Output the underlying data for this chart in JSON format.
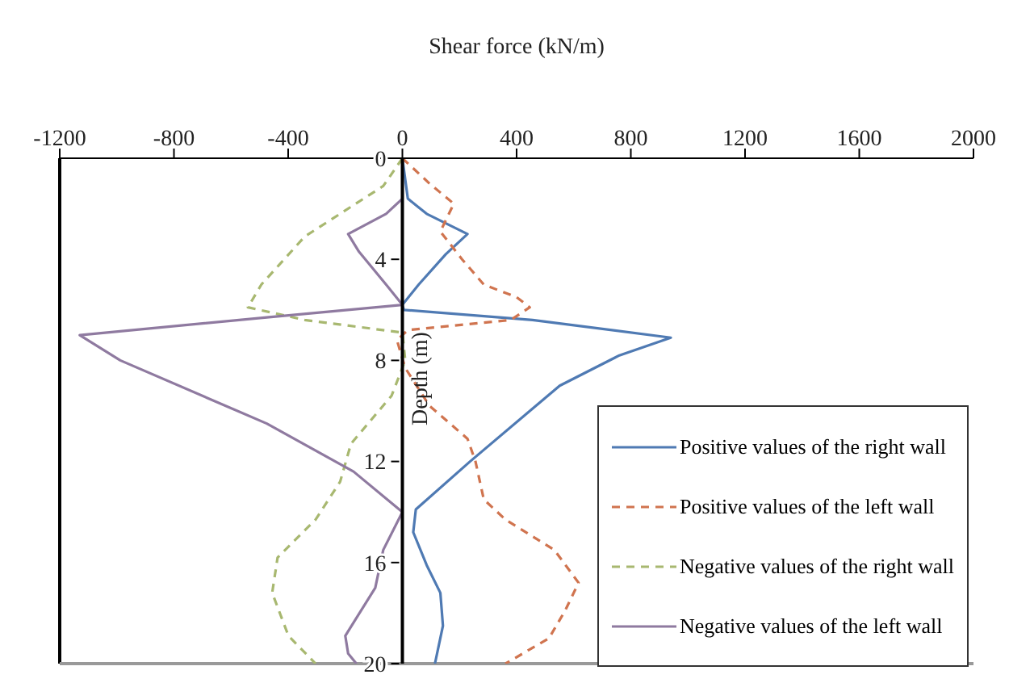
{
  "chart_data": {
    "type": "line",
    "xlabel": "Shear force (kN/m)",
    "ylabel": "Depth (m)",
    "xlim": [
      -1200,
      2000
    ],
    "xticks": [
      -1200,
      -800,
      -400,
      0,
      400,
      800,
      1200,
      1600,
      2000
    ],
    "ylim": [
      20,
      0
    ],
    "yticks": [
      0,
      4,
      8,
      12,
      16,
      20
    ],
    "grid": false,
    "legend": "bottom right",
    "marker": "none",
    "series": [
      {
        "name": "Positive values of the right wall",
        "color": "#4f7ab3",
        "line_style": "solid",
        "x": [
          0,
          19,
          85,
          228,
          152,
          57,
          0,
          5,
          456,
          940,
          760,
          551,
          237,
          47,
          38,
          85,
          133,
          142,
          114
        ],
        "values": [
          0,
          1.6,
          2.2,
          3.0,
          3.8,
          5.0,
          5.8,
          6.0,
          6.4,
          7.1,
          7.8,
          9.0,
          12.0,
          13.9,
          14.8,
          16.1,
          17.2,
          18.5,
          20
        ]
      },
      {
        "name": "Positive values of the left wall",
        "color": "#d0744f",
        "line_style": "dashed",
        "x": [
          0,
          95,
          180,
          133,
          209,
          285,
          400,
          446,
          380,
          19,
          -19,
          10,
          95,
          228,
          256,
          285,
          361,
          532,
          617,
          570,
          513,
          361
        ],
        "values": [
          0,
          1.0,
          1.8,
          2.9,
          4.0,
          5.0,
          5.5,
          5.9,
          6.4,
          6.8,
          7.2,
          8.3,
          9.8,
          11.1,
          12.0,
          13.5,
          14.3,
          15.5,
          16.8,
          17.9,
          19.0,
          20
        ]
      },
      {
        "name": "Negative values of the right wall",
        "color": "#a8b870",
        "line_style": "dashed",
        "x": [
          0,
          -67,
          -342,
          -494,
          -541,
          -342,
          0,
          10,
          -38,
          -180,
          -218,
          -304,
          -437,
          -456,
          -399,
          -304
        ],
        "values": [
          0,
          1.1,
          3.1,
          5.0,
          5.9,
          6.4,
          6.9,
          8.0,
          9.4,
          11.3,
          12.8,
          14.3,
          15.8,
          17.2,
          18.9,
          20
        ]
      },
      {
        "name": "Negative values of the left wall",
        "color": "#8f7aa0",
        "line_style": "solid",
        "x": [
          0,
          0,
          -57,
          -190,
          -152,
          -57,
          0,
          -475,
          -1130,
          -988,
          -475,
          -171,
          0,
          -67,
          -95,
          -200,
          -190,
          -161
        ],
        "values": [
          0,
          1.6,
          2.2,
          3.0,
          3.7,
          5.0,
          5.8,
          6.3,
          7.0,
          8.0,
          10.5,
          12.4,
          14.0,
          15.5,
          17.0,
          18.9,
          19.6,
          20
        ]
      }
    ]
  }
}
